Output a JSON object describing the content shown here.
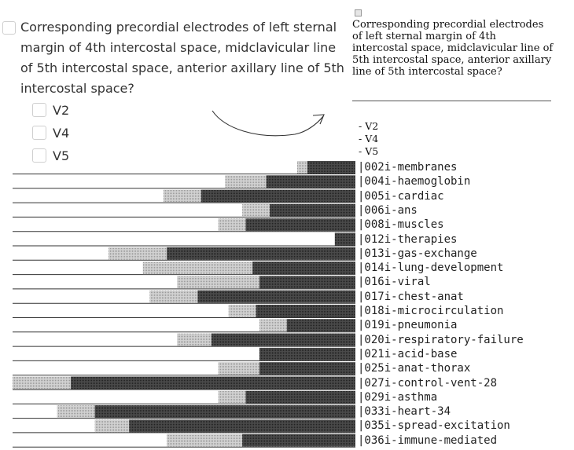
{
  "question": {
    "text": "Corresponding precordial electrodes of left sternal margin of 4th intercostal space, midclavicular line of 5th intercostal space, anterior axillary line of 5th intercostal space?",
    "options": [
      "V2",
      "V4",
      "V5"
    ]
  },
  "preview": {
    "text": "Corresponding precordial electrodes of left sternal margin of 4th intercostal space, midclavicular line of 5th intercostal space, anterior axillary line of 5th intercostal space?",
    "options": [
      "- V2",
      "- V4",
      "- V5"
    ]
  },
  "colors": {
    "dark": "#3c3c3c",
    "light": "#c4c4c4",
    "white": "#ffffff",
    "line": "#222222"
  },
  "rows": [
    {
      "label": "|002i-membranes",
      "light": 0.17,
      "dark": 0.14
    },
    {
      "label": "|004i-haemoglobin",
      "light": 0.38,
      "dark": 0.26
    },
    {
      "label": "|005i-cardiac",
      "light": 0.56,
      "dark": 0.45
    },
    {
      "label": "|006i-ans",
      "light": 0.33,
      "dark": 0.25
    },
    {
      "label": "|008i-muscles",
      "light": 0.4,
      "dark": 0.32
    },
    {
      "label": "|012i-therapies",
      "light": 0.06,
      "dark": 0.06
    },
    {
      "label": "|013i-gas-exchange",
      "light": 0.72,
      "dark": 0.55
    },
    {
      "label": "|014i-lung-development",
      "light": 0.62,
      "dark": 0.3
    },
    {
      "label": "|016i-viral",
      "light": 0.52,
      "dark": 0.28
    },
    {
      "label": "|017i-chest-anat",
      "light": 0.6,
      "dark": 0.46
    },
    {
      "label": "|018i-microcirculation",
      "light": 0.37,
      "dark": 0.29
    },
    {
      "label": "|019i-pneumonia",
      "light": 0.28,
      "dark": 0.2
    },
    {
      "label": "|020i-respiratory-failure",
      "light": 0.52,
      "dark": 0.42
    },
    {
      "label": "|021i-acid-base",
      "light": 0.28,
      "dark": 0.28
    },
    {
      "label": "|025i-anat-thorax",
      "light": 0.4,
      "dark": 0.28
    },
    {
      "label": "|027i-control-vent-28",
      "light": 1.0,
      "dark": 0.83
    },
    {
      "label": "|029i-asthma",
      "light": 0.4,
      "dark": 0.32
    },
    {
      "label": "|033i-heart-34",
      "light": 0.87,
      "dark": 0.76
    },
    {
      "label": "|035i-spread-excitation",
      "light": 0.76,
      "dark": 0.66
    },
    {
      "label": "|036i-immune-mediated",
      "light": 0.55,
      "dark": 0.33
    }
  ]
}
